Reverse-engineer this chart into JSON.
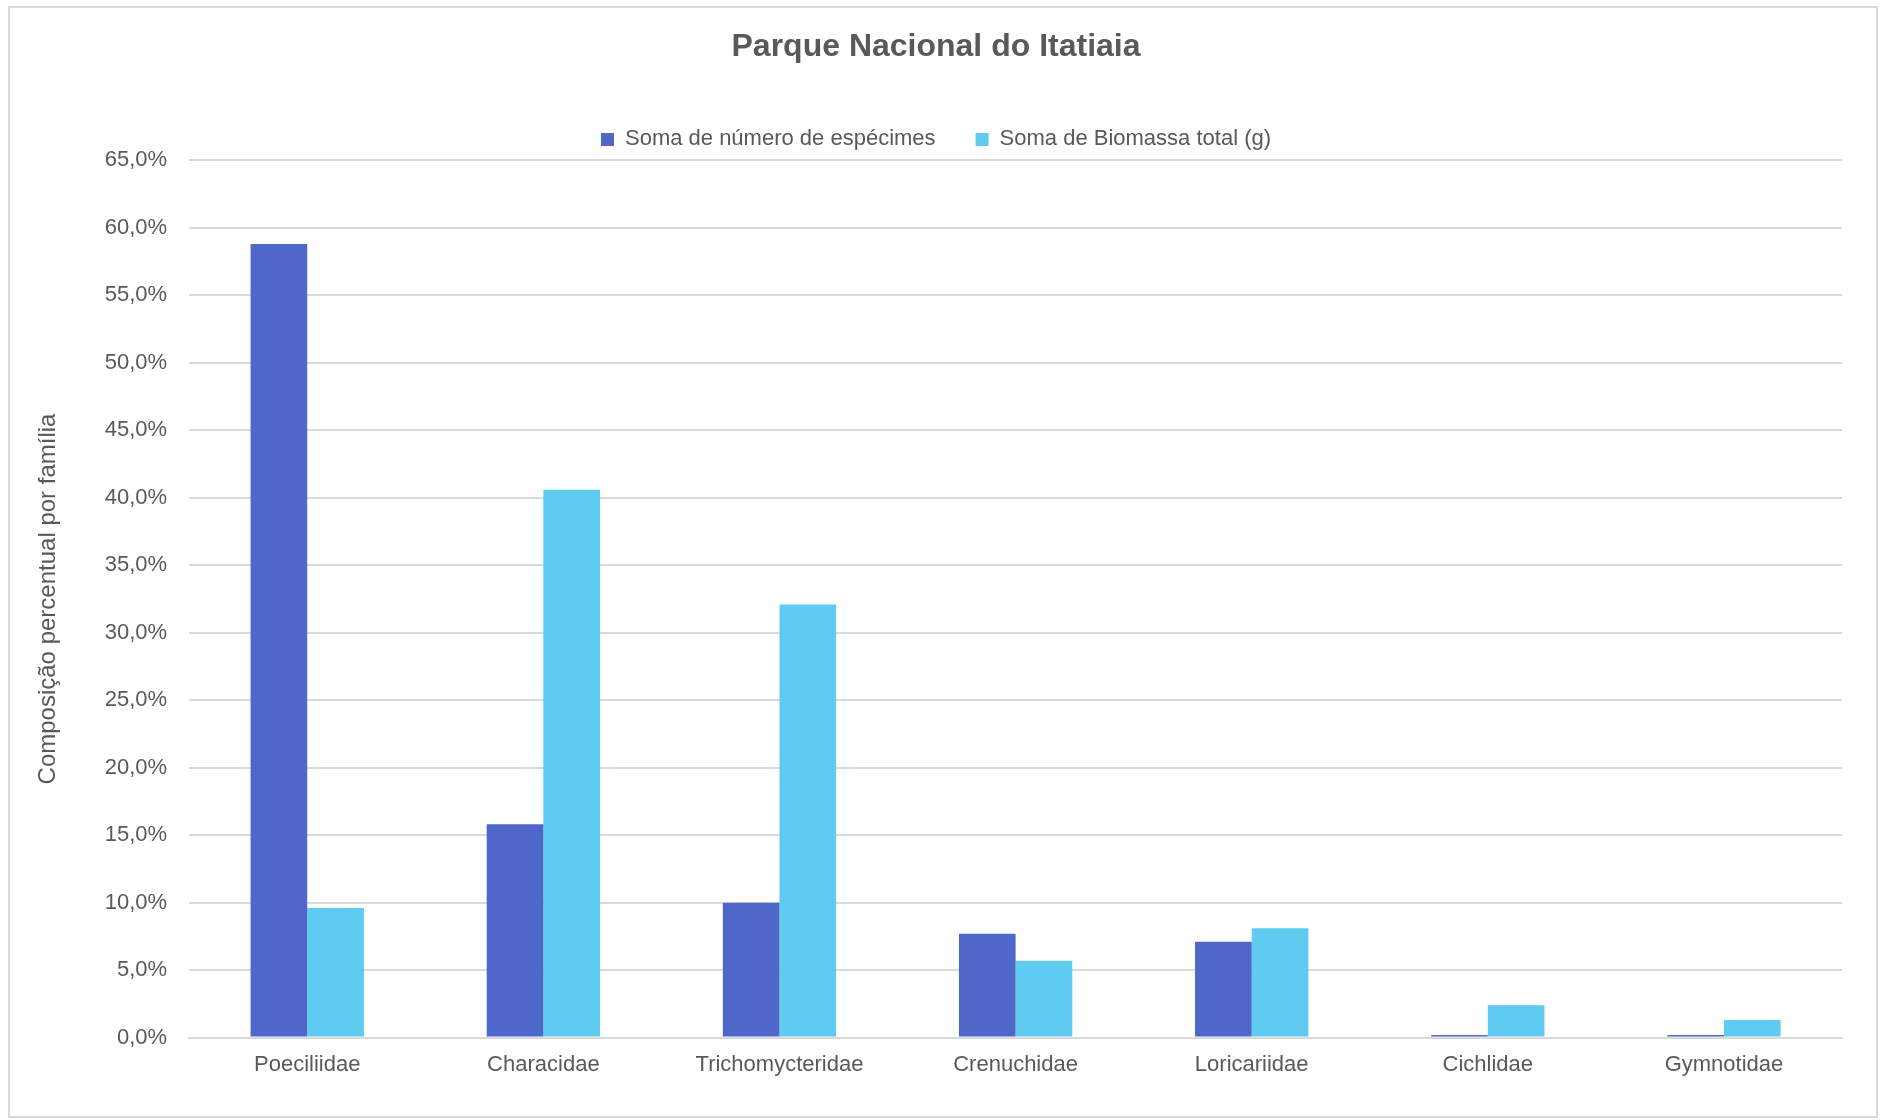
{
  "chart_data": {
    "type": "bar",
    "title": "Parque Nacional do Itatiaia",
    "ylabel": "Composição percentual por família",
    "categories": [
      "Poeciliidae",
      "Characidae",
      "Trichomycteridae",
      "Crenuchidae",
      "Loricariidae",
      "Cichlidae",
      "Gymnotidae"
    ],
    "series": [
      {
        "name": "Soma de número de espécimes",
        "color": "#4e67c8",
        "values": [
          58.8,
          15.8,
          10.0,
          7.7,
          7.1,
          0.2,
          0.2
        ]
      },
      {
        "name": "Soma de Biomassa total (g)",
        "color": "#5fcbf1",
        "values": [
          9.6,
          40.6,
          32.1,
          5.7,
          8.1,
          2.4,
          1.3
        ]
      }
    ],
    "ylim": [
      0,
      65
    ],
    "yticks": [
      {
        "value": 0,
        "label": "0,0%"
      },
      {
        "value": 5,
        "label": "5,0%"
      },
      {
        "value": 10,
        "label": "10,0%"
      },
      {
        "value": 15,
        "label": "15,0%"
      },
      {
        "value": 20,
        "label": "20,0%"
      },
      {
        "value": 25,
        "label": "25,0%"
      },
      {
        "value": 30,
        "label": "30,0%"
      },
      {
        "value": 35,
        "label": "35,0%"
      },
      {
        "value": 40,
        "label": "40,0%"
      },
      {
        "value": 45,
        "label": "45,0%"
      },
      {
        "value": 50,
        "label": "50,0%"
      },
      {
        "value": 55,
        "label": "55,0%"
      },
      {
        "value": 60,
        "label": "60,0%"
      },
      {
        "value": 65,
        "label": "65,0%"
      }
    ],
    "grid": "y",
    "legend": "top"
  }
}
